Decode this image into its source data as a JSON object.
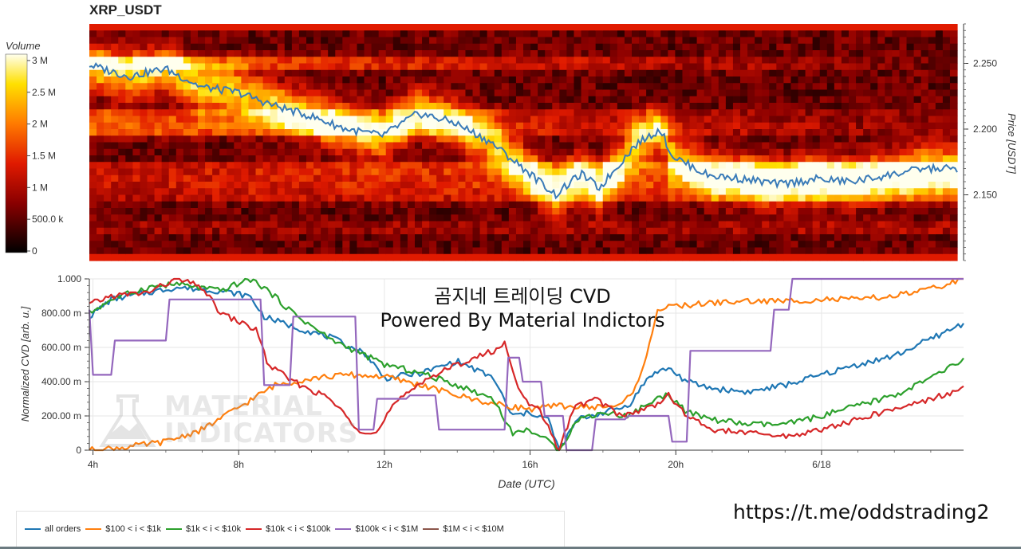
{
  "title": "XRP_USDT",
  "colorbar": {
    "label": "Volume",
    "ticks": [
      "3 M",
      "2.5 M",
      "2 M",
      "1.5 M",
      "1 M",
      "500.0 k",
      "0"
    ],
    "tick_values": [
      3000000,
      2500000,
      2000000,
      1500000,
      1000000,
      500000,
      0
    ]
  },
  "overlay_text": {
    "line1": "곰지네 트레이딩 CVD",
    "line2": "Powered By Material Indictors"
  },
  "watermark": {
    "line1": "MATERIAL",
    "line2": "INDICATORS"
  },
  "url": "https://t.me/oddstrading2",
  "chart_data": [
    {
      "type": "heatmap",
      "title": "XRP_USDT",
      "ylabel": "Price [USDT]",
      "colorbar_label": "Volume",
      "y_ticks": [
        "2.250",
        "2.200",
        "2.150"
      ],
      "y_tick_values": [
        2.25,
        2.2,
        2.15
      ],
      "ylim": [
        2.1,
        2.28
      ],
      "heatmap_levels": [
        {
          "price": 2.125,
          "start_vol": 600000,
          "end_vol": 900000
        },
        {
          "price": 2.15,
          "start_vol": 1000000,
          "end_vol": 2200000
        },
        {
          "price": 2.16,
          "start_vol": 1200000,
          "end_vol": 2600000
        },
        {
          "price": 2.17,
          "start_vol": 1200000,
          "end_vol": 2800000
        },
        {
          "price": 2.2,
          "start_vol": 2700000,
          "end_vol": 400000
        },
        {
          "price": 2.21,
          "start_vol": 2300000,
          "end_vol": 300000
        },
        {
          "price": 2.25,
          "start_vol": 2600000,
          "end_vol": 200000
        }
      ],
      "series": [
        {
          "name": "Price",
          "color": "#3a7bb8",
          "x": [
            4,
            5,
            6,
            7,
            8,
            9,
            10,
            11,
            12,
            13,
            14,
            15,
            16,
            16.8,
            17.5,
            18,
            19,
            19.7,
            20,
            21,
            22,
            23,
            24,
            25,
            26,
            27
          ],
          "values": [
            2.248,
            2.24,
            2.246,
            2.232,
            2.228,
            2.218,
            2.21,
            2.2,
            2.195,
            2.212,
            2.205,
            2.19,
            2.168,
            2.15,
            2.166,
            2.155,
            2.188,
            2.2,
            2.18,
            2.165,
            2.162,
            2.158,
            2.162,
            2.16,
            2.165,
            2.17
          ]
        }
      ]
    },
    {
      "type": "line",
      "xlabel": "Date (UTC)",
      "ylabel": "Normalized CVD [arb. u.]",
      "x_ticks": [
        "4h",
        "8h",
        "12h",
        "16h",
        "20h",
        "6/18"
      ],
      "x_tick_values": [
        4,
        8,
        12,
        16,
        20,
        24
      ],
      "y_ticks": [
        "1.000",
        "800.00 m",
        "600.00 m",
        "400.00 m",
        "200.00 m",
        "0"
      ],
      "y_tick_values": [
        1.0,
        0.8,
        0.6,
        0.4,
        0.2,
        0
      ],
      "xlim": [
        3.9,
        27.9
      ],
      "ylim": [
        0,
        1.0
      ],
      "grid": true,
      "legend": "bottom-left",
      "series": [
        {
          "name": "all orders",
          "color": "#1f77b4",
          "x": [
            3.9,
            4.5,
            5.5,
            6.3,
            7.5,
            8.3,
            8.7,
            9.5,
            10.5,
            11.5,
            12,
            13,
            14,
            15,
            15.5,
            16,
            16.5,
            16.8,
            17.3,
            18,
            18.7,
            19.3,
            19.8,
            20.3,
            21,
            22,
            23,
            24,
            25,
            26,
            27,
            27.9
          ],
          "values": [
            0.78,
            0.88,
            0.92,
            0.95,
            0.93,
            0.9,
            0.78,
            0.72,
            0.66,
            0.56,
            0.42,
            0.45,
            0.52,
            0.42,
            0.2,
            0.22,
            0.18,
            0.0,
            0.18,
            0.22,
            0.26,
            0.44,
            0.48,
            0.4,
            0.36,
            0.34,
            0.38,
            0.44,
            0.5,
            0.55,
            0.65,
            0.74
          ]
        },
        {
          "name": "$100 < i < $1k",
          "color": "#ff7f0e",
          "x": [
            3.9,
            5,
            6,
            7,
            8,
            9,
            10,
            11,
            12,
            13,
            14,
            15,
            16,
            16.8,
            17.5,
            18.5,
            19,
            19.5,
            20,
            21,
            22,
            23,
            24,
            25,
            26,
            27,
            27.9
          ],
          "values": [
            0.0,
            0.02,
            0.05,
            0.12,
            0.25,
            0.38,
            0.42,
            0.44,
            0.43,
            0.38,
            0.32,
            0.27,
            0.24,
            0.26,
            0.25,
            0.26,
            0.4,
            0.82,
            0.84,
            0.86,
            0.87,
            0.87,
            0.88,
            0.88,
            0.9,
            0.94,
            1.0
          ]
        },
        {
          "name": "$1k < i < $10k",
          "color": "#2ca02c",
          "x": [
            3.9,
            4.5,
            5.5,
            6.3,
            7.5,
            8.3,
            8.7,
            9.5,
            10.5,
            11.5,
            12,
            13,
            14,
            15,
            15.5,
            16,
            16.5,
            16.8,
            17.3,
            18,
            18.7,
            19.3,
            19.8,
            20.3,
            21,
            22,
            23,
            24,
            25,
            26,
            27,
            27.9
          ],
          "values": [
            0.8,
            0.88,
            0.95,
            0.97,
            0.93,
            1.0,
            0.95,
            0.8,
            0.65,
            0.55,
            0.5,
            0.45,
            0.38,
            0.3,
            0.1,
            0.12,
            0.05,
            0.0,
            0.18,
            0.22,
            0.2,
            0.28,
            0.33,
            0.22,
            0.18,
            0.15,
            0.15,
            0.2,
            0.26,
            0.32,
            0.42,
            0.53
          ]
        },
        {
          "name": "$10k < i < $100k",
          "color": "#d62728",
          "x": [
            3.9,
            4.5,
            5.5,
            6.3,
            7,
            7.5,
            8.5,
            8.8,
            9.5,
            10.5,
            11.3,
            11.8,
            12.2,
            13,
            14,
            15,
            15.3,
            15.8,
            16.3,
            16.8,
            17.2,
            17.8,
            18.5,
            19.3,
            19.8,
            20.3,
            21,
            22,
            23,
            24,
            25,
            26,
            27,
            27.9
          ],
          "values": [
            0.85,
            0.9,
            0.92,
            1.0,
            0.95,
            0.8,
            0.7,
            0.5,
            0.4,
            0.3,
            0.12,
            0.1,
            0.25,
            0.4,
            0.5,
            0.58,
            0.62,
            0.3,
            0.22,
            0.0,
            0.25,
            0.3,
            0.2,
            0.25,
            0.32,
            0.2,
            0.12,
            0.1,
            0.08,
            0.12,
            0.18,
            0.24,
            0.3,
            0.36
          ]
        },
        {
          "name": "$100k < i < $1M",
          "color": "#9467bd",
          "x": [
            3.9,
            4.0,
            4.5,
            4.6,
            6.0,
            6.1,
            8.6,
            8.7,
            9.4,
            9.5,
            11.2,
            11.3,
            11.7,
            11.8,
            12.6,
            12.7,
            13.4,
            13.5,
            15.3,
            15.4,
            15.7,
            15.8,
            16.3,
            16.4,
            16.9,
            17.0,
            17.7,
            17.8,
            18.6,
            18.7,
            19.8,
            19.9,
            20.3,
            20.4,
            22.6,
            22.7,
            23.1,
            23.2,
            27.9
          ],
          "values": [
            0.82,
            0.44,
            0.44,
            0.64,
            0.64,
            0.88,
            0.88,
            0.38,
            0.38,
            0.78,
            0.78,
            0.12,
            0.12,
            0.3,
            0.3,
            0.32,
            0.32,
            0.12,
            0.12,
            0.54,
            0.54,
            0.4,
            0.4,
            0.2,
            0.2,
            0.0,
            0.0,
            0.18,
            0.18,
            0.2,
            0.2,
            0.05,
            0.05,
            0.58,
            0.58,
            0.82,
            0.82,
            1.0,
            1.0
          ]
        },
        {
          "name": "$1M < i < $10M",
          "color": "#8c564b",
          "x": [],
          "values": []
        }
      ]
    }
  ]
}
